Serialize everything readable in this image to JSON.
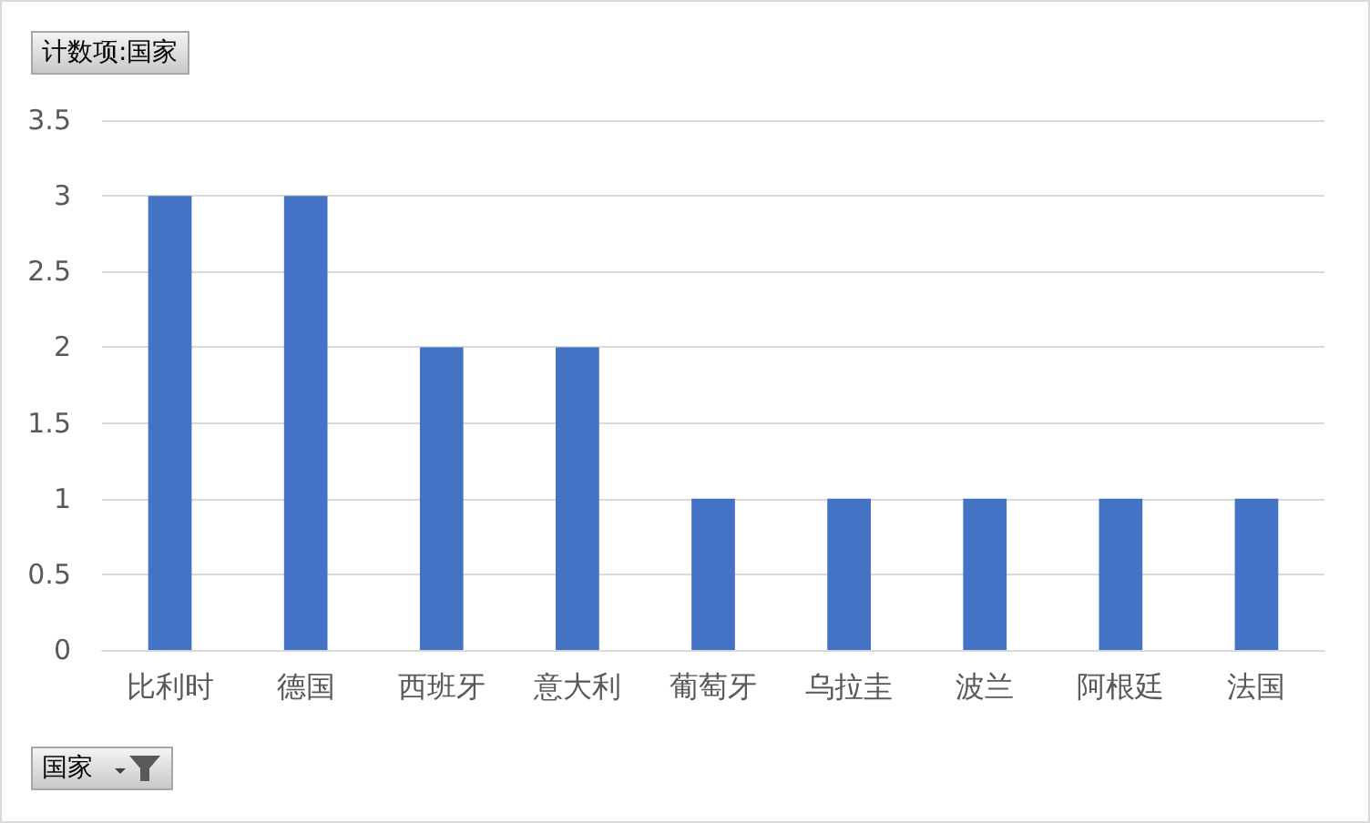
{
  "chart_data": {
    "type": "bar",
    "title": "计数项:国家",
    "xlabel": "国家",
    "categories": [
      "比利时",
      "德国",
      "西班牙",
      "意大利",
      "葡萄牙",
      "乌拉圭",
      "波兰",
      "阿根廷",
      "法国"
    ],
    "values": [
      3,
      3,
      2,
      2,
      1,
      1,
      1,
      1,
      1
    ],
    "color": "#4472c4",
    "ylim": [
      0,
      3.5
    ],
    "yticks": [
      0,
      0.5,
      1,
      1.5,
      2,
      2.5,
      3,
      3.5
    ],
    "grid": "y"
  }
}
